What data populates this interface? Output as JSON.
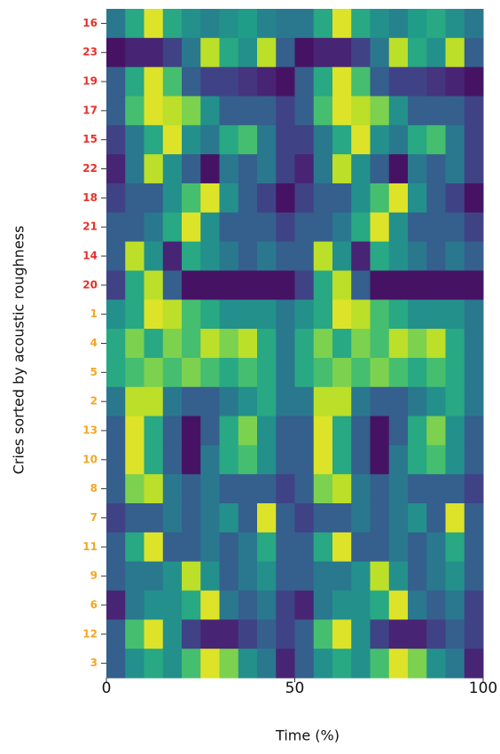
{
  "chart_data": {
    "type": "heatmap",
    "xlabel": "Time (%)",
    "ylabel": "Cries sorted by acoustic roughness",
    "xlim": [
      0,
      100
    ],
    "xticks": [
      0,
      50,
      100
    ],
    "colormap": "viridis",
    "categories": [
      "16",
      "23",
      "19",
      "17",
      "15",
      "22",
      "18",
      "21",
      "14",
      "20",
      "1",
      "4",
      "5",
      "2",
      "13",
      "10",
      "8",
      "7",
      "11",
      "9",
      "6",
      "12",
      "3"
    ],
    "category_colors": [
      "#e8302a",
      "#e8302a",
      "#e8302a",
      "#e8302a",
      "#e8302a",
      "#e8302a",
      "#e8302a",
      "#e8302a",
      "#e8302a",
      "#e8302a",
      "#f5a623",
      "#f5a623",
      "#f5a623",
      "#f5a623",
      "#f5a623",
      "#f5a623",
      "#f5a623",
      "#f5a623",
      "#f5a623",
      "#f5a623",
      "#f5a623",
      "#f5a623",
      "#f5a623"
    ],
    "values": [
      [
        0.4,
        0.6,
        0.95,
        0.6,
        0.5,
        0.45,
        0.5,
        0.55,
        0.45,
        0.4,
        0.4,
        0.6,
        0.95,
        0.6,
        0.5,
        0.45,
        0.55,
        0.6,
        0.5,
        0.4
      ],
      [
        0.05,
        0.1,
        0.1,
        0.2,
        0.4,
        0.9,
        0.6,
        0.5,
        0.9,
        0.3,
        0.05,
        0.1,
        0.1,
        0.2,
        0.4,
        0.9,
        0.6,
        0.5,
        0.9,
        0.3
      ],
      [
        0.3,
        0.6,
        0.95,
        0.7,
        0.3,
        0.2,
        0.2,
        0.15,
        0.1,
        0.05,
        0.3,
        0.6,
        0.95,
        0.7,
        0.3,
        0.2,
        0.2,
        0.15,
        0.1,
        0.05
      ],
      [
        0.3,
        0.7,
        0.95,
        0.9,
        0.8,
        0.5,
        0.3,
        0.3,
        0.3,
        0.2,
        0.3,
        0.7,
        0.95,
        0.9,
        0.8,
        0.5,
        0.3,
        0.3,
        0.3,
        0.2
      ],
      [
        0.2,
        0.4,
        0.6,
        0.95,
        0.5,
        0.4,
        0.6,
        0.7,
        0.4,
        0.2,
        0.2,
        0.4,
        0.6,
        0.95,
        0.5,
        0.4,
        0.6,
        0.7,
        0.4,
        0.2
      ],
      [
        0.1,
        0.4,
        0.9,
        0.5,
        0.3,
        0.05,
        0.4,
        0.3,
        0.4,
        0.2,
        0.1,
        0.4,
        0.9,
        0.5,
        0.3,
        0.05,
        0.4,
        0.3,
        0.4,
        0.2
      ],
      [
        0.2,
        0.3,
        0.3,
        0.5,
        0.7,
        0.95,
        0.5,
        0.3,
        0.2,
        0.05,
        0.2,
        0.3,
        0.3,
        0.5,
        0.7,
        0.95,
        0.5,
        0.3,
        0.2,
        0.05
      ],
      [
        0.3,
        0.3,
        0.4,
        0.6,
        0.95,
        0.5,
        0.3,
        0.3,
        0.3,
        0.2,
        0.3,
        0.3,
        0.4,
        0.6,
        0.95,
        0.5,
        0.3,
        0.3,
        0.3,
        0.2
      ],
      [
        0.3,
        0.9,
        0.5,
        0.1,
        0.6,
        0.5,
        0.4,
        0.3,
        0.4,
        0.3,
        0.3,
        0.9,
        0.5,
        0.1,
        0.6,
        0.5,
        0.4,
        0.3,
        0.4,
        0.3
      ],
      [
        0.2,
        0.6,
        0.9,
        0.3,
        0.05,
        0.05,
        0.05,
        0.05,
        0.05,
        0.05,
        0.2,
        0.6,
        0.9,
        0.3,
        0.05,
        0.05,
        0.05,
        0.05,
        0.05,
        0.05
      ],
      [
        0.5,
        0.6,
        0.95,
        0.9,
        0.7,
        0.6,
        0.5,
        0.5,
        0.5,
        0.4,
        0.5,
        0.6,
        0.95,
        0.9,
        0.7,
        0.6,
        0.5,
        0.5,
        0.5,
        0.4
      ],
      [
        0.6,
        0.8,
        0.6,
        0.8,
        0.7,
        0.9,
        0.8,
        0.9,
        0.6,
        0.4,
        0.6,
        0.8,
        0.6,
        0.8,
        0.7,
        0.9,
        0.8,
        0.9,
        0.6,
        0.4
      ],
      [
        0.6,
        0.7,
        0.8,
        0.7,
        0.8,
        0.7,
        0.6,
        0.7,
        0.6,
        0.4,
        0.6,
        0.7,
        0.8,
        0.7,
        0.8,
        0.7,
        0.6,
        0.7,
        0.6,
        0.4
      ],
      [
        0.4,
        0.9,
        0.9,
        0.4,
        0.3,
        0.3,
        0.4,
        0.5,
        0.6,
        0.4,
        0.4,
        0.9,
        0.9,
        0.4,
        0.3,
        0.3,
        0.4,
        0.5,
        0.6,
        0.4
      ],
      [
        0.3,
        0.95,
        0.6,
        0.3,
        0.05,
        0.3,
        0.6,
        0.8,
        0.5,
        0.3,
        0.3,
        0.95,
        0.6,
        0.3,
        0.05,
        0.3,
        0.6,
        0.8,
        0.5,
        0.3
      ],
      [
        0.3,
        0.95,
        0.6,
        0.3,
        0.05,
        0.4,
        0.6,
        0.7,
        0.5,
        0.3,
        0.3,
        0.95,
        0.6,
        0.3,
        0.05,
        0.4,
        0.6,
        0.7,
        0.5,
        0.3
      ],
      [
        0.3,
        0.8,
        0.9,
        0.4,
        0.3,
        0.4,
        0.3,
        0.3,
        0.3,
        0.2,
        0.3,
        0.8,
        0.9,
        0.4,
        0.3,
        0.4,
        0.3,
        0.3,
        0.3,
        0.2
      ],
      [
        0.2,
        0.3,
        0.3,
        0.4,
        0.3,
        0.4,
        0.5,
        0.3,
        0.95,
        0.3,
        0.2,
        0.3,
        0.3,
        0.4,
        0.3,
        0.4,
        0.5,
        0.3,
        0.95,
        0.3
      ],
      [
        0.3,
        0.6,
        0.95,
        0.3,
        0.3,
        0.4,
        0.3,
        0.4,
        0.6,
        0.3,
        0.3,
        0.6,
        0.95,
        0.3,
        0.3,
        0.4,
        0.3,
        0.4,
        0.6,
        0.3
      ],
      [
        0.3,
        0.4,
        0.4,
        0.5,
        0.9,
        0.5,
        0.3,
        0.4,
        0.5,
        0.3,
        0.3,
        0.4,
        0.4,
        0.5,
        0.9,
        0.5,
        0.3,
        0.4,
        0.5,
        0.3
      ],
      [
        0.1,
        0.4,
        0.5,
        0.5,
        0.6,
        0.95,
        0.4,
        0.3,
        0.4,
        0.2,
        0.1,
        0.4,
        0.5,
        0.5,
        0.6,
        0.95,
        0.4,
        0.3,
        0.4,
        0.2
      ],
      [
        0.3,
        0.7,
        0.95,
        0.5,
        0.2,
        0.1,
        0.1,
        0.2,
        0.3,
        0.2,
        0.3,
        0.7,
        0.95,
        0.5,
        0.2,
        0.1,
        0.1,
        0.2,
        0.3,
        0.2
      ],
      [
        0.3,
        0.5,
        0.6,
        0.5,
        0.7,
        0.95,
        0.8,
        0.5,
        0.4,
        0.1,
        0.3,
        0.5,
        0.6,
        0.5,
        0.7,
        0.95,
        0.8,
        0.5,
        0.4,
        0.1
      ]
    ]
  }
}
